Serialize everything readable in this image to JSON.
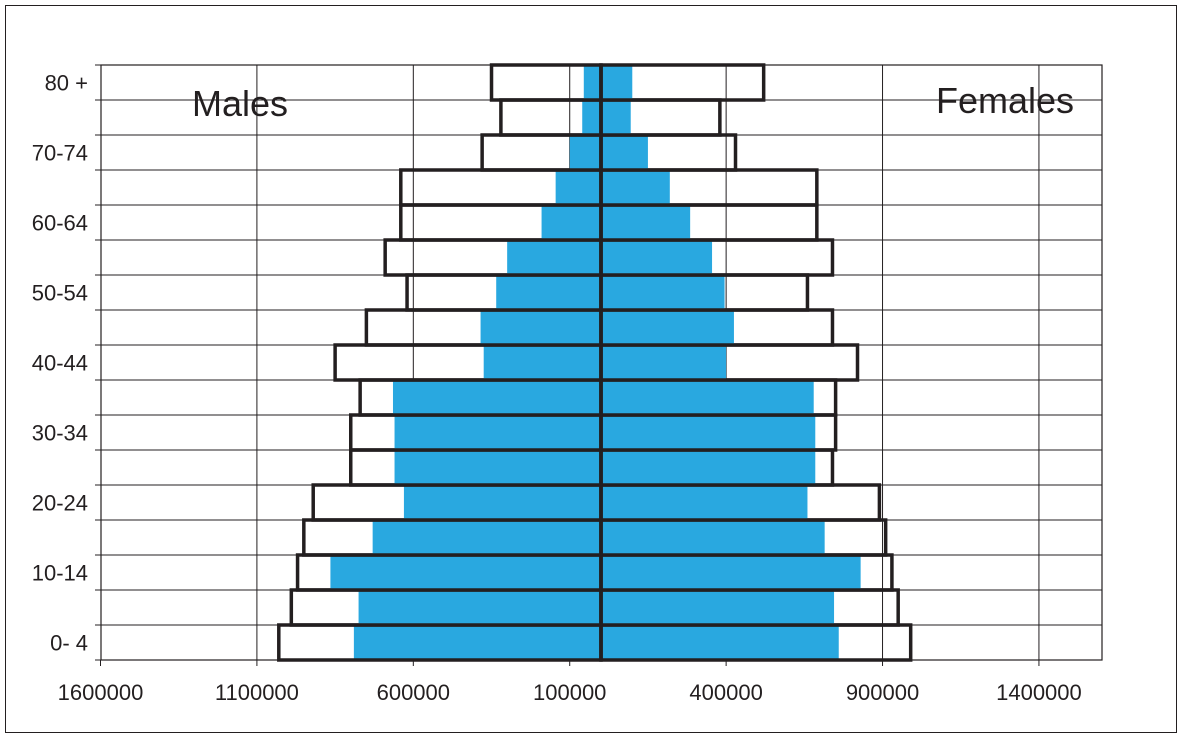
{
  "chart_data": {
    "type": "bar",
    "subtype": "population-pyramid",
    "title": "",
    "xlabel": "",
    "ylabel": "",
    "grid": true,
    "colors": {
      "inner_fill": "#29a8e0",
      "outline": "#231f20",
      "grid": "#231f20",
      "background": "#ffffff"
    },
    "side_labels": {
      "left": "Males",
      "right": "Females"
    },
    "xlim": [
      -1600000,
      1600000
    ],
    "x_tick_values": [
      -1600000,
      -1100000,
      -600000,
      -100000,
      400000,
      900000,
      1400000
    ],
    "x_tick_labels": [
      "1600000",
      "1100000",
      "600000",
      "100000",
      "400000",
      "900000",
      "1400000"
    ],
    "y_tick_labels": [
      {
        "index": 0,
        "label": "0- 4"
      },
      {
        "index": 2,
        "label": "10-14"
      },
      {
        "index": 4,
        "label": "20-24"
      },
      {
        "index": 6,
        "label": "30-34"
      },
      {
        "index": 8,
        "label": "40-44"
      },
      {
        "index": 10,
        "label": "50-54"
      },
      {
        "index": 12,
        "label": "60-64"
      },
      {
        "index": 14,
        "label": "70-74"
      },
      {
        "index": 16,
        "label": "80 +"
      }
    ],
    "age_groups_count": 17,
    "series": [
      {
        "values": [
          1030000,
          990000,
          970000,
          950000,
          920000,
          800000,
          800000,
          770000,
          850000,
          750000,
          620000,
          690000,
          640000,
          640000,
          380000,
          320000,
          350000
        ]
      },
      {
        "values": [
          790000,
          775000,
          865000,
          730000,
          630000,
          660000,
          660000,
          665000,
          375000,
          385000,
          335000,
          300000,
          190000,
          145000,
          100000,
          60000,
          55000
        ]
      },
      {
        "values": [
          990000,
          950000,
          930000,
          910000,
          890000,
          740000,
          750000,
          750000,
          820000,
          740000,
          660000,
          740000,
          690000,
          690000,
          430000,
          380000,
          520000
        ]
      },
      {
        "values": [
          760000,
          745000,
          830000,
          715000,
          660000,
          685000,
          685000,
          680000,
          400000,
          425000,
          395000,
          355000,
          285000,
          220000,
          150000,
          95000,
          100000
        ]
      }
    ]
  }
}
